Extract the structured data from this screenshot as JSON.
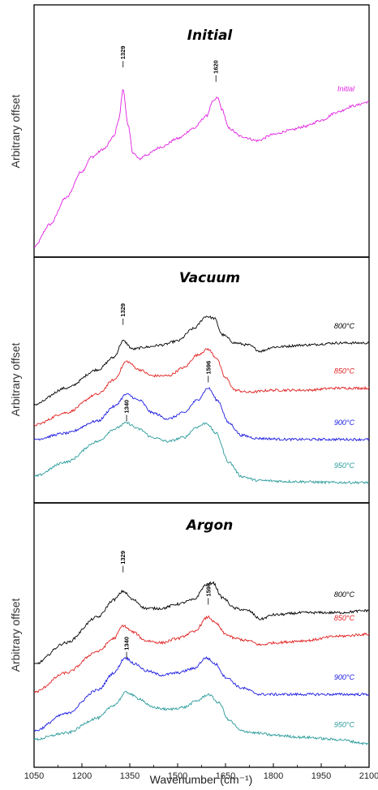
{
  "chart_data": {
    "type": "line",
    "xlabel": "Wavenumber (cm⁻¹)",
    "xlim": [
      1050,
      2100
    ],
    "xticks": [
      1050,
      1200,
      1350,
      1500,
      1650,
      1800,
      1950,
      2100
    ],
    "ylabel": "Arbitrary offset",
    "panels": [
      {
        "title": "Initial",
        "ylim": [
          0,
          1
        ],
        "peak_labels": [
          {
            "text": "1329",
            "x": 1329,
            "y": 0.9
          },
          {
            "text": "1620",
            "x": 1620,
            "y": 0.83
          }
        ],
        "series": [
          {
            "name": "Initial",
            "color": "#e020e0",
            "points": [
              [
                1050,
                0.03
              ],
              [
                1100,
                0.14
              ],
              [
                1150,
                0.27
              ],
              [
                1200,
                0.4
              ],
              [
                1230,
                0.47
              ],
              [
                1270,
                0.51
              ],
              [
                1300,
                0.57
              ],
              [
                1315,
                0.65
              ],
              [
                1329,
                0.8
              ],
              [
                1345,
                0.62
              ],
              [
                1360,
                0.49
              ],
              [
                1380,
                0.46
              ],
              [
                1400,
                0.48
              ],
              [
                1450,
                0.52
              ],
              [
                1500,
                0.56
              ],
              [
                1550,
                0.61
              ],
              [
                1590,
                0.67
              ],
              [
                1610,
                0.74
              ],
              [
                1625,
                0.76
              ],
              [
                1640,
                0.7
              ],
              [
                1660,
                0.61
              ],
              [
                1700,
                0.57
              ],
              [
                1750,
                0.55
              ],
              [
                1800,
                0.58
              ],
              [
                1850,
                0.6
              ],
              [
                1900,
                0.62
              ],
              [
                1950,
                0.65
              ],
              [
                2000,
                0.69
              ],
              [
                2050,
                0.72
              ],
              [
                2100,
                0.74
              ]
            ]
          }
        ]
      },
      {
        "title": "Vacuum",
        "ylim": [
          0,
          1
        ],
        "peak_labels": [
          {
            "text": "1329",
            "x": 1329,
            "y": 0.8
          },
          {
            "text": "1596",
            "x": 1596,
            "y": 0.52
          },
          {
            "text": "1340",
            "x": 1340,
            "y": 0.33
          }
        ],
        "series": [
          {
            "name": "800°C",
            "color": "#000000",
            "points": [
              [
                1050,
                0.42
              ],
              [
                1150,
                0.5
              ],
              [
                1250,
                0.59
              ],
              [
                1300,
                0.65
              ],
              [
                1329,
                0.73
              ],
              [
                1360,
                0.69
              ],
              [
                1400,
                0.7
              ],
              [
                1450,
                0.71
              ],
              [
                1500,
                0.73
              ],
              [
                1550,
                0.79
              ],
              [
                1590,
                0.85
              ],
              [
                1615,
                0.84
              ],
              [
                1640,
                0.76
              ],
              [
                1680,
                0.72
              ],
              [
                1720,
                0.71
              ],
              [
                1760,
                0.68
              ],
              [
                1800,
                0.7
              ],
              [
                1900,
                0.71
              ],
              [
                2000,
                0.72
              ],
              [
                2100,
                0.72
              ]
            ]
          },
          {
            "name": "850°C",
            "color": "#e02020",
            "points": [
              [
                1050,
                0.32
              ],
              [
                1150,
                0.38
              ],
              [
                1250,
                0.47
              ],
              [
                1300,
                0.54
              ],
              [
                1340,
                0.63
              ],
              [
                1380,
                0.59
              ],
              [
                1420,
                0.56
              ],
              [
                1470,
                0.56
              ],
              [
                1520,
                0.6
              ],
              [
                1560,
                0.66
              ],
              [
                1595,
                0.69
              ],
              [
                1620,
                0.65
              ],
              [
                1650,
                0.55
              ],
              [
                1680,
                0.49
              ],
              [
                1720,
                0.48
              ],
              [
                1800,
                0.49
              ],
              [
                1900,
                0.49
              ],
              [
                2000,
                0.5
              ],
              [
                2100,
                0.5
              ]
            ]
          },
          {
            "name": "900°C",
            "color": "#1a1ae0",
            "points": [
              [
                1050,
                0.25
              ],
              [
                1150,
                0.28
              ],
              [
                1250,
                0.34
              ],
              [
                1300,
                0.41
              ],
              [
                1340,
                0.47
              ],
              [
                1380,
                0.44
              ],
              [
                1420,
                0.38
              ],
              [
                1470,
                0.35
              ],
              [
                1520,
                0.38
              ],
              [
                1560,
                0.44
              ],
              [
                1596,
                0.5
              ],
              [
                1625,
                0.44
              ],
              [
                1660,
                0.33
              ],
              [
                1700,
                0.27
              ],
              [
                1750,
                0.255
              ],
              [
                1850,
                0.25
              ],
              [
                2000,
                0.25
              ],
              [
                2100,
                0.25
              ]
            ]
          },
          {
            "name": "950°C",
            "color": "#2a9a9a",
            "points": [
              [
                1050,
                0.07
              ],
              [
                1150,
                0.14
              ],
              [
                1250,
                0.24
              ],
              [
                1300,
                0.3
              ],
              [
                1340,
                0.33
              ],
              [
                1380,
                0.3
              ],
              [
                1420,
                0.26
              ],
              [
                1470,
                0.24
              ],
              [
                1520,
                0.26
              ],
              [
                1560,
                0.31
              ],
              [
                1590,
                0.33
              ],
              [
                1620,
                0.28
              ],
              [
                1660,
                0.14
              ],
              [
                1700,
                0.07
              ],
              [
                1750,
                0.05
              ],
              [
                1850,
                0.045
              ],
              [
                2000,
                0.04
              ],
              [
                2100,
                0.04
              ]
            ]
          }
        ]
      },
      {
        "title": "Argon",
        "ylim": [
          0,
          1
        ],
        "peak_labels": [
          {
            "text": "1329",
            "x": 1329,
            "y": 0.82
          },
          {
            "text": "1596",
            "x": 1596,
            "y": 0.67
          },
          {
            "text": "1340",
            "x": 1340,
            "y": 0.42
          }
        ],
        "series": [
          {
            "name": "800°C",
            "color": "#000000",
            "points": [
              [
                1050,
                0.4
              ],
              [
                1150,
                0.5
              ],
              [
                1250,
                0.62
              ],
              [
                1300,
                0.7
              ],
              [
                1329,
                0.74
              ],
              [
                1360,
                0.7
              ],
              [
                1400,
                0.66
              ],
              [
                1450,
                0.66
              ],
              [
                1500,
                0.68
              ],
              [
                1550,
                0.7
              ],
              [
                1590,
                0.77
              ],
              [
                1610,
                0.78
              ],
              [
                1640,
                0.71
              ],
              [
                1680,
                0.66
              ],
              [
                1720,
                0.65
              ],
              [
                1760,
                0.61
              ],
              [
                1800,
                0.63
              ],
              [
                1900,
                0.64
              ],
              [
                2000,
                0.64
              ],
              [
                2100,
                0.65
              ]
            ]
          },
          {
            "name": "850°C",
            "color": "#e02020",
            "points": [
              [
                1050,
                0.27
              ],
              [
                1150,
                0.36
              ],
              [
                1250,
                0.46
              ],
              [
                1300,
                0.52
              ],
              [
                1329,
                0.58
              ],
              [
                1360,
                0.55
              ],
              [
                1400,
                0.51
              ],
              [
                1450,
                0.5
              ],
              [
                1500,
                0.52
              ],
              [
                1550,
                0.55
              ],
              [
                1596,
                0.62
              ],
              [
                1620,
                0.59
              ],
              [
                1650,
                0.54
              ],
              [
                1680,
                0.52
              ],
              [
                1720,
                0.51
              ],
              [
                1760,
                0.49
              ],
              [
                1800,
                0.5
              ],
              [
                1900,
                0.51
              ],
              [
                2000,
                0.53
              ],
              [
                2100,
                0.54
              ]
            ]
          },
          {
            "name": "900°C",
            "color": "#1a1ae0",
            "points": [
              [
                1050,
                0.09
              ],
              [
                1150,
                0.17
              ],
              [
                1250,
                0.28
              ],
              [
                1300,
                0.36
              ],
              [
                1335,
                0.43
              ],
              [
                1370,
                0.4
              ],
              [
                1400,
                0.37
              ],
              [
                1450,
                0.35
              ],
              [
                1500,
                0.36
              ],
              [
                1550,
                0.38
              ],
              [
                1590,
                0.43
              ],
              [
                1620,
                0.4
              ],
              [
                1650,
                0.34
              ],
              [
                1700,
                0.29
              ],
              [
                1760,
                0.26
              ],
              [
                1850,
                0.26
              ],
              [
                2000,
                0.26
              ],
              [
                2100,
                0.26
              ]
            ]
          },
          {
            "name": "950°C",
            "color": "#2a9a9a",
            "points": [
              [
                1050,
                0.05
              ],
              [
                1150,
                0.08
              ],
              [
                1250,
                0.15
              ],
              [
                1300,
                0.21
              ],
              [
                1340,
                0.27
              ],
              [
                1380,
                0.24
              ],
              [
                1420,
                0.2
              ],
              [
                1470,
                0.19
              ],
              [
                1520,
                0.2
              ],
              [
                1560,
                0.23
              ],
              [
                1596,
                0.26
              ],
              [
                1630,
                0.22
              ],
              [
                1660,
                0.14
              ],
              [
                1700,
                0.09
              ],
              [
                1750,
                0.08
              ],
              [
                1800,
                0.07
              ],
              [
                1900,
                0.06
              ],
              [
                2000,
                0.05
              ],
              [
                2100,
                0.03
              ]
            ]
          }
        ]
      }
    ]
  }
}
